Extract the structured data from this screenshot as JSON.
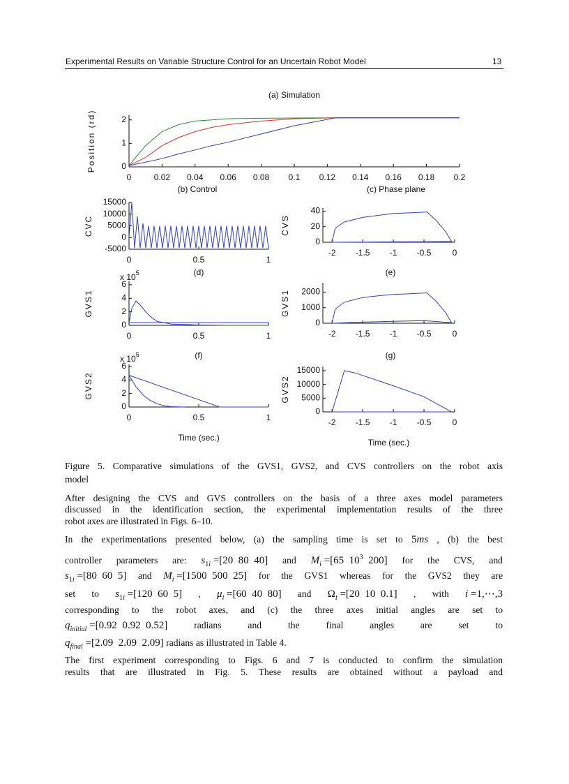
{
  "header": {
    "title": "Experimental Results on Variable Structure Control for an Uncertain Robot Model",
    "page": "13"
  },
  "chart_data": [
    {
      "type": "line",
      "title": "(a) Simulation",
      "y_label": "Position (rd)",
      "xlim": [
        0,
        0.2
      ],
      "xticks": [
        0,
        0.02,
        0.04,
        0.06,
        0.08,
        0.1,
        0.12,
        0.14,
        0.16,
        0.18,
        0.2
      ],
      "ylim": [
        0,
        2.2
      ],
      "yticks": [
        0,
        1,
        2
      ],
      "series": [
        {
          "color": "#2e8b3a",
          "x": [
            0,
            0.01,
            0.02,
            0.03,
            0.04,
            0.05,
            0.06,
            0.08,
            0.1,
            0.125,
            0.15,
            0.2
          ],
          "values": [
            0.05,
            0.9,
            1.5,
            1.8,
            1.95,
            2.0,
            2.05,
            2.07,
            2.08,
            2.09,
            2.09,
            2.09
          ]
        },
        {
          "color": "#e0302a",
          "x": [
            0,
            0.01,
            0.02,
            0.03,
            0.04,
            0.05,
            0.06,
            0.08,
            0.1,
            0.125,
            0.15,
            0.2
          ],
          "values": [
            0.05,
            0.4,
            0.9,
            1.25,
            1.5,
            1.68,
            1.8,
            1.95,
            2.05,
            2.09,
            2.09,
            2.09
          ]
        },
        {
          "color": "#3340b5",
          "x": [
            0,
            0.01,
            0.02,
            0.03,
            0.04,
            0.05,
            0.06,
            0.08,
            0.1,
            0.125,
            0.15,
            0.2
          ],
          "values": [
            0.05,
            0.2,
            0.35,
            0.55,
            0.72,
            0.9,
            1.05,
            1.4,
            1.75,
            2.09,
            2.09,
            2.09
          ]
        }
      ]
    },
    {
      "type": "line",
      "title": "(b) Control",
      "y_label": "CVC",
      "xlim": [
        0,
        1
      ],
      "xticks": [
        0,
        0.5,
        1
      ],
      "ylim": [
        -5000,
        15000
      ],
      "yticks": [
        -5000,
        0,
        5000,
        10000,
        15000
      ],
      "series": [
        {
          "color": "#3340b5",
          "x": [
            0,
            0.02,
            0.04,
            0.06,
            0.08,
            0.1,
            0.12,
            0.14,
            0.16,
            0.18,
            0.2,
            0.22,
            0.24,
            0.26,
            0.28,
            0.3,
            0.32,
            0.34,
            0.36,
            0.38,
            0.4,
            0.42,
            0.44,
            0.46,
            0.48,
            0.5,
            0.52,
            0.54,
            0.56,
            0.58,
            0.6,
            0.62,
            0.64,
            0.66,
            0.68,
            0.7,
            0.72,
            0.74,
            0.76,
            0.78,
            0.8,
            0.82,
            0.84,
            0.86,
            0.88,
            0.9,
            0.92,
            0.94,
            0.96,
            0.98,
            1
          ],
          "values": [
            0,
            15000,
            -4500,
            9000,
            -4500,
            6000,
            -4500,
            5000,
            -4500,
            5000,
            -4500,
            5000,
            -4500,
            5000,
            -4500,
            5000,
            -4500,
            5000,
            -4500,
            5000,
            -4500,
            5000,
            -4500,
            5000,
            -4500,
            5000,
            -4500,
            5000,
            -4500,
            5000,
            -4500,
            5000,
            -4500,
            5000,
            -4500,
            5000,
            -4500,
            5000,
            -4500,
            5000,
            -4500,
            5000,
            -4500,
            5000,
            -4500,
            5000,
            -4500,
            5000,
            -4500,
            5000,
            -4500
          ]
        }
      ]
    },
    {
      "type": "line",
      "title": "(c) Phase plane",
      "y_label": "CVS",
      "xlim": [
        -2.15,
        0
      ],
      "xticks": [
        -2,
        -1.5,
        -1,
        -0.5,
        0
      ],
      "ylim": [
        0,
        44
      ],
      "yticks": [
        0,
        20,
        40
      ],
      "series": [
        {
          "color": "#3340b5",
          "x": [
            -2,
            -1.95,
            -1.8,
            -1.5,
            -1.2,
            -1,
            -0.7,
            -0.45,
            -0.3,
            -0.15,
            -0.05,
            -0.5,
            -1,
            -1.5,
            -2
          ],
          "values": [
            0,
            18,
            26,
            32,
            35,
            37,
            38,
            39,
            28,
            14,
            1,
            0.7,
            0.5,
            0.3,
            0
          ]
        }
      ]
    },
    {
      "type": "line",
      "title": "(d)",
      "y_label": "GVS1",
      "y_multiplier": {
        "text": "x 10",
        "exponent": "5"
      },
      "xlim": [
        0,
        1
      ],
      "xticks": [
        0,
        0.5,
        1
      ],
      "ylim": [
        0,
        6.5
      ],
      "yticks": [
        0,
        2,
        4,
        6
      ],
      "series": [
        {
          "color": "#3340b5",
          "x": [
            0,
            0.02,
            0.05,
            0.08,
            0.12,
            0.16,
            0.2,
            0.3,
            0.5,
            0.7,
            1
          ],
          "values": [
            0.4,
            2.5,
            3.6,
            3.0,
            2.0,
            1.2,
            0.6,
            0.2,
            0.05,
            0,
            0
          ]
        },
        {
          "color": "#3340b5",
          "x": [
            0,
            1
          ],
          "values": [
            0.4,
            0.4
          ]
        }
      ]
    },
    {
      "type": "line",
      "title": "(e)",
      "y_label": "GVS1",
      "xlim": [
        -2.15,
        0
      ],
      "xticks": [
        -2,
        -1.5,
        -1,
        -0.5,
        0
      ],
      "ylim": [
        0,
        2600
      ],
      "yticks": [
        0,
        1000,
        2000
      ],
      "series": [
        {
          "color": "#3340b5",
          "x": [
            -2,
            -1.95,
            -1.8,
            -1.5,
            -1.2,
            -1,
            -0.7,
            -0.45,
            -0.3,
            -0.15,
            -0.05,
            -0.5,
            -1,
            -1.5,
            -2
          ],
          "values": [
            0,
            900,
            1350,
            1650,
            1780,
            1850,
            1900,
            1950,
            1400,
            700,
            30,
            170,
            120,
            70,
            0
          ]
        }
      ]
    },
    {
      "type": "line",
      "title": "(f)",
      "y_label": "GVS2",
      "x_label": "Time (sec.)",
      "y_multiplier": {
        "text": "x 10",
        "exponent": "5"
      },
      "xlim": [
        0,
        1
      ],
      "xticks": [
        0,
        0.5,
        1
      ],
      "ylim": [
        0,
        6.3
      ],
      "yticks": [
        0,
        2,
        4,
        6
      ],
      "series": [
        {
          "color": "#3340b5",
          "x": [
            0,
            0.65,
            1
          ],
          "values": [
            4.7,
            0,
            0
          ]
        },
        {
          "color": "#3340b5",
          "x": [
            0,
            0.05,
            0.1,
            0.15,
            0.2,
            0.25,
            0.3,
            0.4
          ],
          "values": [
            4.7,
            3.0,
            1.8,
            1.0,
            0.5,
            0.2,
            0.05,
            0
          ]
        }
      ]
    },
    {
      "type": "line",
      "title": "(g)",
      "y_label": "GVS2",
      "x_label": "Time (sec.)",
      "xlim": [
        -2.15,
        0
      ],
      "xticks": [
        -2,
        -1.5,
        -1,
        -0.5,
        0
      ],
      "ylim": [
        0,
        16500
      ],
      "yticks": [
        0,
        5000,
        10000,
        15000
      ],
      "series": [
        {
          "color": "#3340b5",
          "x": [
            -2,
            -1.8,
            -1.6,
            -1,
            -0.5,
            -0.05,
            -2
          ],
          "values": [
            0,
            15000,
            14000,
            9500,
            5500,
            0,
            0
          ]
        }
      ]
    }
  ],
  "text": {
    "caption": [
      [
        "Figure 5. Comparative simulations of the GVS1, GVS2, and CVS controllers on the robot axis"
      ],
      [
        "model"
      ]
    ],
    "paragraphs": [
      [
        [
          "After designing the CVS and GVS controllers on the basis of a three axes model parameters"
        ],
        [
          "discussed in the identification section, the experimental implementation results of the three"
        ],
        [
          "robot axes are illustrated in Figs. 6–10."
        ]
      ],
      [
        [
          "In the experimentations presented below, (a) the sampling time is set to",
          {
            "math": [
              {
                "t": "5",
                "k": "n"
              },
              {
                "t": "ms",
                "k": "i"
              }
            ]
          },
          ", (b) the best"
        ],
        [
          "controller parameters are:",
          {
            "math": [
              {
                "t": "s",
                "k": "i"
              },
              {
                "t": "1",
                "k": "sub"
              },
              {
                "t": "i",
                "k": "isub"
              },
              {
                "t": " =[20  80  40]",
                "k": "n"
              }
            ]
          },
          "and",
          {
            "math": [
              {
                "t": "M",
                "k": "i"
              },
              {
                "t": "i",
                "k": "isub"
              },
              {
                "t": " =[65  10",
                "k": "n"
              },
              {
                "t": "3",
                "k": "sup"
              },
              {
                "t": "  200]",
                "k": "n"
              }
            ]
          },
          "for the CVS, and"
        ],
        [
          {
            "math": [
              {
                "t": "s",
                "k": "i"
              },
              {
                "t": "1",
                "k": "sub"
              },
              {
                "t": "i",
                "k": "isub"
              },
              {
                "t": " =[80  60  5]",
                "k": "n"
              }
            ]
          },
          "and",
          {
            "math": [
              {
                "t": "M",
                "k": "i"
              },
              {
                "t": "i",
                "k": "isub"
              },
              {
                "t": " =[1500  500  25]",
                "k": "n"
              }
            ]
          },
          "for the GVS1 whereas for the GVS2 they are"
        ],
        [
          "set to",
          {
            "math": [
              {
                "t": "s",
                "k": "i"
              },
              {
                "t": "1",
                "k": "sub"
              },
              {
                "t": "i",
                "k": "isub"
              },
              {
                "t": " =[120  60  5]",
                "k": "n"
              }
            ]
          },
          ",",
          {
            "math": [
              {
                "t": "μ",
                "k": "i"
              },
              {
                "t": "i",
                "k": "isub"
              },
              {
                "t": " =[60  40  80]",
                "k": "n"
              }
            ]
          },
          "and",
          {
            "math": [
              {
                "t": "Ω",
                "k": "n"
              },
              {
                "t": "i",
                "k": "isub"
              },
              {
                "t": " =[20  10  0.1]",
                "k": "n"
              }
            ]
          },
          ", with",
          {
            "math": [
              {
                "t": "i",
                "k": "i"
              },
              {
                "t": " =1,⋯,3",
                "k": "n"
              }
            ]
          }
        ],
        [
          "corresponding to the robot axes, and (c) the three axes initial angles are set to"
        ],
        [
          {
            "math": [
              {
                "t": "q",
                "k": "i"
              },
              {
                "t": "initial",
                "k": "isub"
              },
              {
                "t": " =[0.92  0.92  0.52]",
                "k": "n"
              }
            ]
          },
          "radians and the final angles are set to"
        ],
        [
          {
            "math": [
              {
                "t": "q",
                "k": "i"
              },
              {
                "t": "final",
                "k": "isub"
              },
              {
                "t": " =[2.09  2.09  2.09]",
                "k": "n"
              }
            ]
          },
          "radians as illustrated in Table 4."
        ]
      ],
      [
        [
          "The first experiment corresponding to Figs. 6 and 7 is conducted to confirm the simulation"
        ],
        [
          "results that are illustrated in Fig. 5. These results are obtained without a payload and"
        ]
      ]
    ]
  }
}
